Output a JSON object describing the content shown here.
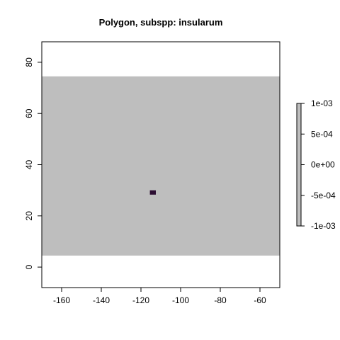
{
  "chart_data": {
    "type": "heatmap",
    "title": "Polygon, subspp: insularum",
    "xlabel": "",
    "ylabel": "",
    "xlim": [
      -170,
      -50
    ],
    "ylim": [
      -8,
      88
    ],
    "x_ticks": [
      -160,
      -140,
      -120,
      -100,
      -80,
      -60
    ],
    "y_ticks": [
      0,
      20,
      40,
      60,
      80
    ],
    "raster_extent": {
      "xmin": -170,
      "xmax": -50,
      "ymin": 4.5,
      "ymax": 74.5,
      "color": "#bebebe"
    },
    "polygon_cell": {
      "xmin": -115.5,
      "xmax": -112.5,
      "ymin": 28.3,
      "ymax": 30,
      "color": "#2d0f33"
    },
    "legend": {
      "placement": "right",
      "color": "#bebebe",
      "ticks": [
        "1e-03",
        "5e-04",
        "0e+00",
        "-5e-04",
        "-1e-03"
      ]
    },
    "grid": false
  }
}
